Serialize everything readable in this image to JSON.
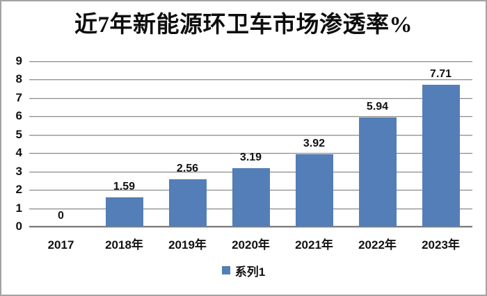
{
  "window": {
    "background": "#ffffff",
    "border_color": "#a3a3a3"
  },
  "chart_data": {
    "type": "bar",
    "title": "近7年新能源环卫车市场渗透率%",
    "categories": [
      "2017",
      "2018年",
      "2019年",
      "2020年",
      "2021年",
      "2022年",
      "2023年"
    ],
    "series": [
      {
        "name": "系列1",
        "values": [
          0,
          1.59,
          2.56,
          3.19,
          3.92,
          5.94,
          7.71
        ]
      }
    ],
    "data_labels": [
      "0",
      "1.59",
      "2.56",
      "3.19",
      "3.92",
      "5.94",
      "7.71"
    ],
    "xlabel": "",
    "ylabel": "",
    "ylim": [
      0,
      9
    ],
    "yticks": [
      0,
      1,
      2,
      3,
      4,
      5,
      6,
      7,
      8,
      9
    ],
    "grid": true,
    "legend_position": "bottom",
    "colors": {
      "bar": "#537EB7",
      "gridline": "#8f8f8f",
      "axis_line": "#7f7f7f",
      "text": "#111111"
    }
  }
}
